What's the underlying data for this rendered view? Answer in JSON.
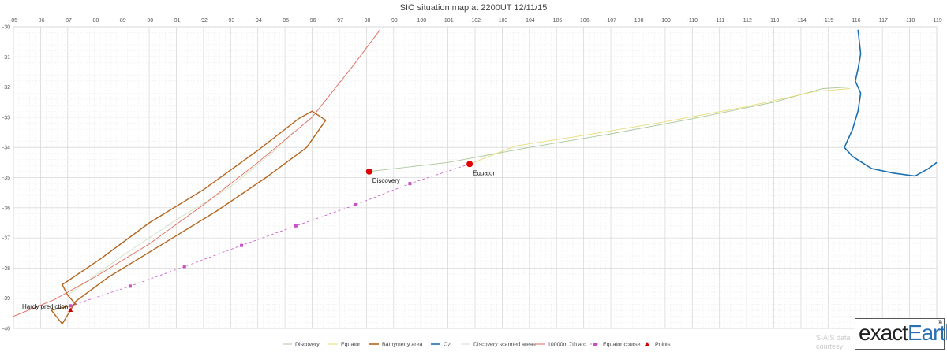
{
  "chart_data": {
    "type": "scatter",
    "title": "SIO situation map at 2200UT 12/11/15",
    "x_ticks": [
      "-85",
      "-86",
      "-87",
      "-88",
      "-89",
      "-90",
      "-91",
      "-92",
      "-93",
      "-94",
      "-95",
      "-96",
      "-97",
      "-98",
      "-99",
      "-100",
      "-101",
      "-102",
      "-103",
      "-104",
      "-105",
      "-106",
      "-107",
      "-108",
      "-109",
      "-110",
      "-111",
      "-112",
      "-113",
      "-114",
      "-115",
      "-116",
      "-117",
      "-118",
      "-119"
    ],
    "y_ticks": [
      "-30",
      "-31",
      "-32",
      "-33",
      "-34",
      "-35",
      "-36",
      "-37",
      "-38",
      "-39",
      "-40"
    ],
    "xlim": [
      -85,
      -119
    ],
    "ylim": [
      -30,
      -40
    ],
    "grid": true,
    "legend": [
      "Discovery",
      "Equator",
      "Bathymetry area",
      "Oz",
      "Discovery scanned areas",
      "10000m 7th arc",
      "Equator course",
      "Points"
    ],
    "series": [
      {
        "name": "Discovery",
        "color": "#a9c89b",
        "points": [
          [
            -98.1,
            -34.8
          ],
          [
            -101.0,
            -34.5
          ],
          [
            -104.0,
            -34.0
          ],
          [
            -107.0,
            -33.55
          ],
          [
            -110.0,
            -33.05
          ],
          [
            -113.0,
            -32.5
          ],
          [
            -114.8,
            -32.05
          ],
          [
            -115.8,
            -32.0
          ]
        ]
      },
      {
        "name": "Equator",
        "color": "#e8dc7a",
        "points": [
          [
            -101.8,
            -34.55
          ],
          [
            -103.5,
            -33.95
          ],
          [
            -106.0,
            -33.6
          ],
          [
            -109.0,
            -33.15
          ],
          [
            -112.0,
            -32.65
          ],
          [
            -114.5,
            -32.15
          ],
          [
            -115.8,
            -32.05
          ]
        ]
      },
      {
        "name": "Bathymetry area",
        "color": "#b5651d",
        "points": [
          [
            -86.8,
            -38.55
          ],
          [
            -88.2,
            -37.7
          ],
          [
            -90.0,
            -36.5
          ],
          [
            -92.0,
            -35.4
          ],
          [
            -94.0,
            -34.1
          ],
          [
            -95.5,
            -33.05
          ],
          [
            -96.0,
            -32.8
          ],
          [
            -96.5,
            -33.1
          ],
          [
            -95.8,
            -34.0
          ],
          [
            -94.3,
            -35.0
          ],
          [
            -92.5,
            -36.1
          ],
          [
            -90.5,
            -37.2
          ],
          [
            -88.5,
            -38.3
          ],
          [
            -87.3,
            -39.1
          ],
          [
            -86.8,
            -39.85
          ],
          [
            -86.4,
            -39.4
          ],
          [
            -87.3,
            -39.2
          ],
          [
            -87.0,
            -38.9
          ],
          [
            -86.8,
            -38.55
          ]
        ]
      },
      {
        "name": "Oz",
        "color": "#1a6fb0",
        "points": [
          [
            -116.1,
            -30.1
          ],
          [
            -116.2,
            -30.9
          ],
          [
            -116.1,
            -31.4
          ],
          [
            -116.0,
            -31.8
          ],
          [
            -116.2,
            -32.2
          ],
          [
            -116.1,
            -32.8
          ],
          [
            -115.9,
            -33.4
          ],
          [
            -115.6,
            -34.0
          ],
          [
            -115.9,
            -34.3
          ],
          [
            -116.6,
            -34.7
          ],
          [
            -117.4,
            -34.85
          ],
          [
            -118.2,
            -34.95
          ],
          [
            -118.7,
            -34.7
          ],
          [
            -119.0,
            -34.5
          ]
        ]
      },
      {
        "name": "Discovery scanned areas",
        "color": "#d4e3c6",
        "points": [
          [
            -87.0,
            -38.9
          ],
          [
            -89.0,
            -37.6
          ],
          [
            -91.0,
            -36.4
          ],
          [
            -93.0,
            -35.3
          ],
          [
            -94.5,
            -34.2
          ],
          [
            -95.3,
            -33.5
          ]
        ]
      },
      {
        "name": "10000m 7th arc",
        "color": "#e26a5a",
        "points": [
          [
            -85.0,
            -39.6
          ],
          [
            -86.5,
            -39.05
          ],
          [
            -88.0,
            -38.3
          ],
          [
            -90.0,
            -37.2
          ],
          [
            -92.0,
            -35.9
          ],
          [
            -94.0,
            -34.5
          ],
          [
            -96.0,
            -33.0
          ],
          [
            -97.5,
            -31.3
          ],
          [
            -98.5,
            -30.1
          ]
        ]
      },
      {
        "name": "Equator course",
        "color": "#c84fc4",
        "points": [
          [
            -87.1,
            -39.25
          ],
          [
            -89.3,
            -38.6
          ],
          [
            -91.3,
            -37.95
          ],
          [
            -93.4,
            -37.25
          ],
          [
            -95.4,
            -36.6
          ],
          [
            -97.6,
            -35.9
          ],
          [
            -99.6,
            -35.2
          ],
          [
            -101.8,
            -34.55
          ]
        ]
      },
      {
        "name": "Points",
        "color": "#cc0000",
        "points": [
          [
            -87.1,
            -39.4
          ]
        ]
      }
    ],
    "annotations": [
      {
        "label": "Discovery",
        "x": -98.1,
        "y": -34.8
      },
      {
        "label": "Equator",
        "x": -101.8,
        "y": -34.55
      },
      {
        "label": "Hardy prediction",
        "x": -87.1,
        "y": -39.4
      }
    ],
    "watermark": "S-AIS data courtesy",
    "logo": {
      "left": "exact",
      "right": "Earth",
      "mark": "®"
    }
  }
}
